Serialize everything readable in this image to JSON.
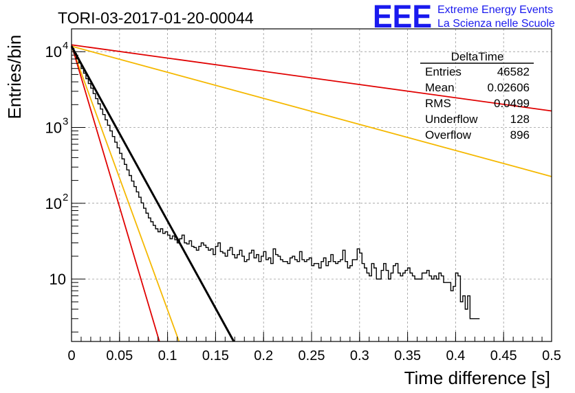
{
  "header": {
    "title": "TORI-03-2017-01-20-00044",
    "logo_letters": "EEE",
    "logo_line1": "Extreme Energy Events",
    "logo_line2": "La Scienza nelle Scuole"
  },
  "stats": {
    "title": "DeltaTime",
    "rows": [
      {
        "label": "Entries",
        "value": "46582"
      },
      {
        "label": "Mean",
        "value": "0.02606"
      },
      {
        "label": "RMS",
        "value": "0.0499"
      },
      {
        "label": "Underflow",
        "value": "128"
      },
      {
        "label": "Overflow",
        "value": "896"
      }
    ]
  },
  "chart_data": {
    "type": "line",
    "title": "TORI-03-2017-01-20-00044",
    "xlabel": "Time difference [s]",
    "ylabel": "Entries/bin",
    "xlim": [
      0,
      0.5
    ],
    "ylim": [
      1.5,
      20000
    ],
    "yscale": "log",
    "grid": true,
    "x_ticks": [
      "0",
      "0.05",
      "0.1",
      "0.15",
      "0.2",
      "0.25",
      "0.3",
      "0.35",
      "0.4",
      "0.45",
      "0.5"
    ],
    "y_ticks": [
      {
        "value": 10,
        "label": "10",
        "exp": ""
      },
      {
        "value": 100,
        "label": "10",
        "exp": "2"
      },
      {
        "value": 1000,
        "label": "10",
        "exp": "3"
      },
      {
        "value": 10000,
        "label": "10",
        "exp": "4"
      }
    ],
    "colors": {
      "histogram": "#000000",
      "fit": "#000000",
      "red": "#e00000",
      "orange": "#f5b800"
    },
    "histogram": {
      "bin_width": 0.0025,
      "x_start": 0,
      "values": [
        11000,
        9500,
        8200,
        7100,
        6000,
        5200,
        4400,
        3800,
        3300,
        2800,
        2400,
        2050,
        1750,
        1480,
        1260,
        1070,
        900,
        760,
        640,
        540,
        455,
        385,
        325,
        275,
        232,
        196,
        166,
        141,
        120,
        101,
        86,
        74,
        64,
        57,
        51,
        46,
        42,
        46,
        40,
        42,
        38,
        34,
        37,
        33,
        30,
        34,
        38,
        30,
        29,
        32,
        27,
        26,
        24,
        27,
        30,
        28,
        26,
        24,
        25,
        21,
        27,
        30,
        23,
        22,
        20,
        24,
        26,
        21,
        19,
        21,
        24,
        20,
        17,
        18,
        22,
        24,
        19,
        21,
        17,
        20,
        23,
        18,
        19,
        16,
        25,
        21,
        20,
        18,
        17,
        17,
        16,
        19,
        20,
        18,
        17,
        23,
        18,
        17,
        18,
        19,
        15,
        16,
        16,
        14,
        17,
        19,
        15,
        17,
        21,
        17,
        16,
        17,
        18,
        24,
        17,
        14,
        15,
        18,
        18,
        25,
        22,
        16,
        14,
        12,
        11,
        16,
        14,
        10,
        10,
        13,
        16,
        13,
        10,
        12,
        15,
        16,
        12,
        11,
        12,
        13,
        14,
        12,
        11,
        10,
        10,
        10,
        12,
        12,
        13,
        11,
        10,
        11,
        10,
        12,
        11,
        9,
        9,
        9,
        7,
        8,
        12,
        11,
        5,
        6,
        4,
        6,
        3,
        3,
        3,
        3
      ]
    },
    "lines": [
      {
        "color": "#e00000",
        "x": [
          0,
          0.5
        ],
        "y": [
          12300,
          1650
        ]
      },
      {
        "color": "#f5b800",
        "x": [
          0,
          0.5
        ],
        "y": [
          11800,
          225
        ]
      },
      {
        "color": "#f5b800",
        "x": [
          0,
          0.112
        ],
        "y": [
          11800,
          1.5
        ]
      },
      {
        "color": "#e00000",
        "x": [
          0,
          0.0915
        ],
        "y": [
          12300,
          1.5
        ]
      },
      {
        "color": "#000000",
        "x": [
          0,
          0.169
        ],
        "y": [
          11800,
          1.5
        ]
      }
    ]
  }
}
